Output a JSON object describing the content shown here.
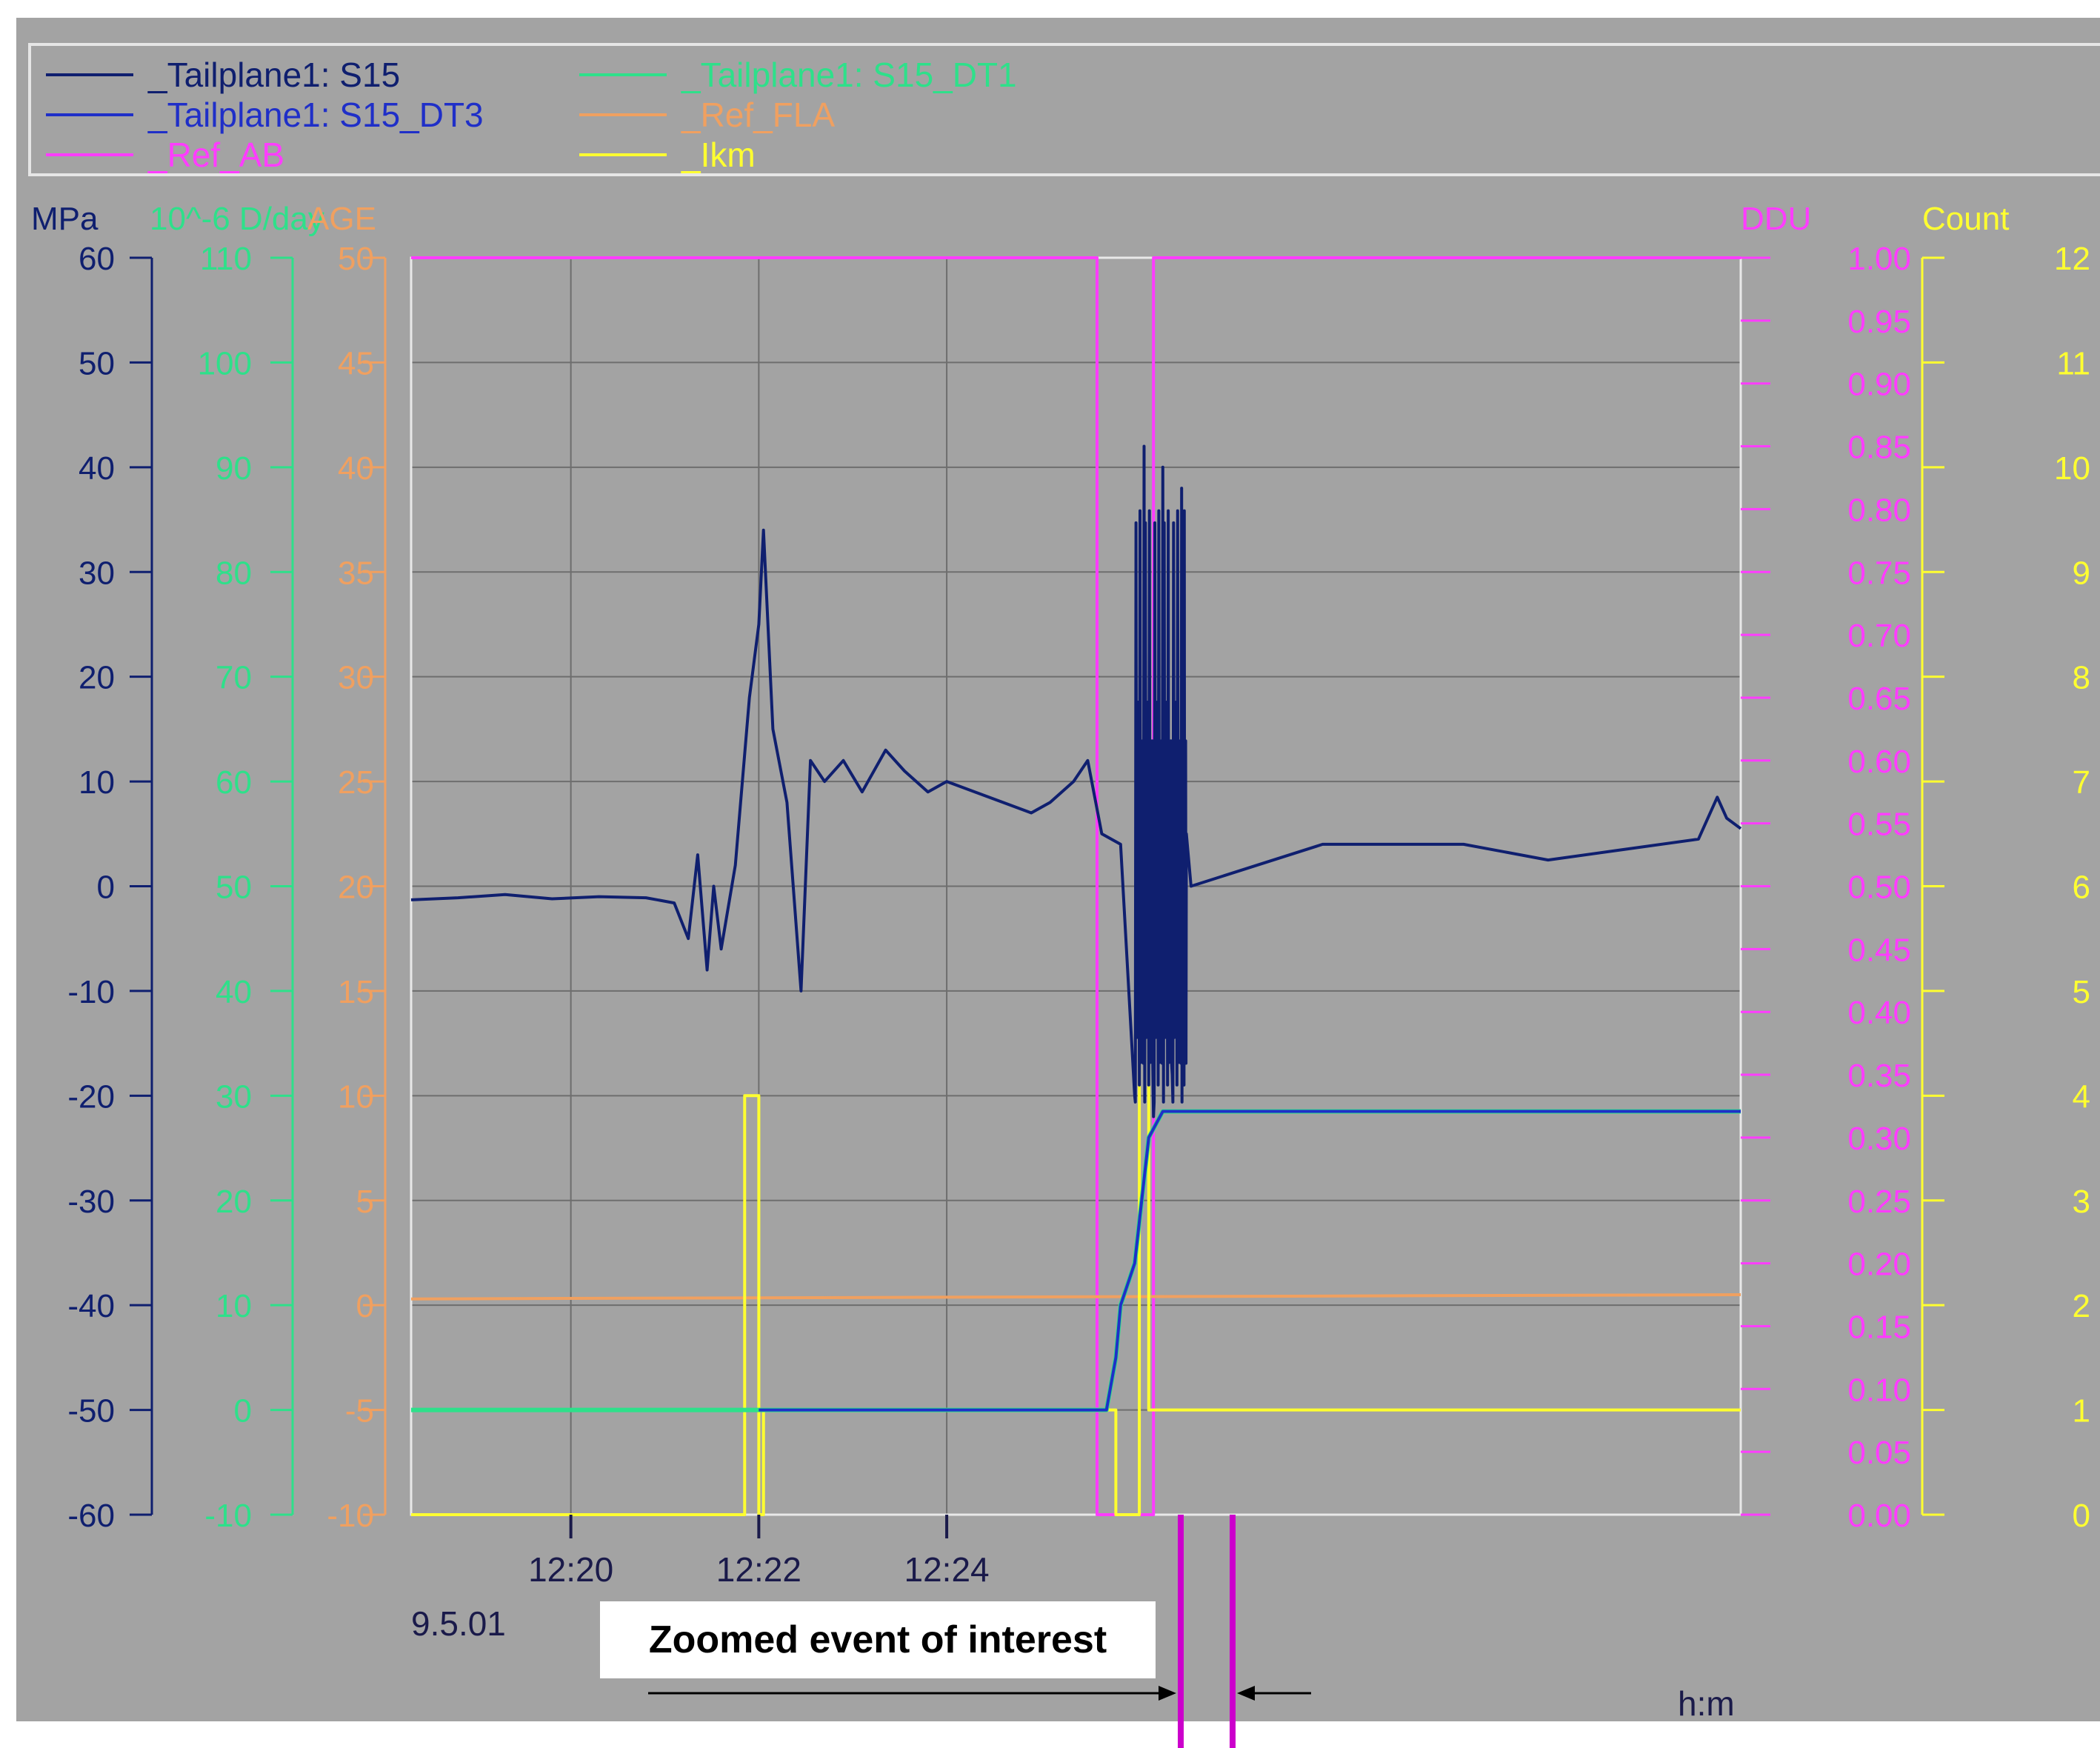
{
  "colors": {
    "background": "#a3a3a3",
    "s15": "#0f1f6f",
    "s15_dt3": "#1f2fc8",
    "s15_dt1": "#2ee08a",
    "ref_ab": "#ff3cff",
    "ref_fla": "#f0a060",
    "ikm": "#ffff30",
    "grid": "#6e6e6e"
  },
  "legend": [
    {
      "label": "_Tailplane1: S15",
      "color": "#0f1f6f"
    },
    {
      "label": "_Tailplane1: S15_DT3",
      "color": "#1f2fc8"
    },
    {
      "label": "_Ref_AB",
      "color": "#ff3cff"
    },
    {
      "label": "_Tailplane1: S15_DT1",
      "color": "#2ee08a"
    },
    {
      "label": "_Ref_FLA",
      "color": "#f0a060"
    },
    {
      "label": "_Ikm",
      "color": "#ffff30"
    }
  ],
  "chart_data": {
    "type": "line",
    "legend_position": "top",
    "grid": true,
    "date_label": "9.5.01",
    "x": {
      "unit_label": "h:m",
      "range_minutes": [
        12.3,
        24.0
      ],
      "tick_labels": [
        "12:20",
        "12:22",
        "12:24"
      ],
      "tick_values": [
        20,
        22,
        24
      ]
    },
    "axes": [
      {
        "label": "MPa",
        "color": "#0f1f6f",
        "range": [
          -60,
          60
        ],
        "ticks": [
          "60",
          "50",
          "40",
          "30",
          "20",
          "10",
          "0",
          "-10",
          "-20",
          "-30",
          "-40",
          "-50",
          "-60"
        ]
      },
      {
        "label": "10^-6 D/day",
        "color": "#2ee08a",
        "range": [
          -10,
          110
        ],
        "ticks": [
          "110",
          "100",
          "90",
          "80",
          "70",
          "60",
          "50",
          "40",
          "30",
          "20",
          "10",
          "0",
          "-10"
        ]
      },
      {
        "label": "AGE",
        "color": "#f0a060",
        "range": [
          -10,
          50
        ],
        "ticks": [
          "50",
          "45",
          "40",
          "35",
          "30",
          "25",
          "20",
          "15",
          "10",
          "5",
          "0",
          "-5",
          "-10"
        ]
      },
      {
        "label": "DDU",
        "color": "#ff3cff",
        "range": [
          0,
          1
        ],
        "ticks": [
          "1.00",
          "0.95",
          "0.90",
          "0.85",
          "0.80",
          "0.75",
          "0.70",
          "0.65",
          "0.60",
          "0.55",
          "0.50",
          "0.45",
          "0.40",
          "0.35",
          "0.30",
          "0.25",
          "0.20",
          "0.15",
          "0.10",
          "0.05",
          "0.00"
        ]
      },
      {
        "label": "Count",
        "color": "#ffff30",
        "range": [
          0,
          12
        ],
        "ticks": [
          "12",
          "11",
          "10",
          "9",
          "8",
          "7",
          "6",
          "5",
          "4",
          "3",
          "2",
          "1",
          "0"
        ]
      }
    ],
    "series": [
      {
        "name": "_Tailplane1: S15",
        "axis": "MPa",
        "points": [
          [
            18.3,
            -1.3
          ],
          [
            18.8,
            -1.1
          ],
          [
            19.3,
            -0.8
          ],
          [
            19.8,
            -1.2
          ],
          [
            20.3,
            -1.0
          ],
          [
            20.8,
            -1.1
          ],
          [
            21.1,
            -1.6
          ],
          [
            21.25,
            -5
          ],
          [
            21.35,
            3
          ],
          [
            21.45,
            -8
          ],
          [
            21.52,
            0
          ],
          [
            21.6,
            -6
          ],
          [
            21.75,
            2
          ],
          [
            21.9,
            18
          ],
          [
            22.0,
            25
          ],
          [
            22.05,
            34
          ],
          [
            22.15,
            15
          ],
          [
            22.3,
            8
          ],
          [
            22.45,
            -10
          ],
          [
            22.55,
            12
          ],
          [
            22.7,
            10
          ],
          [
            22.9,
            12
          ],
          [
            23.1,
            9
          ],
          [
            23.35,
            13
          ],
          [
            23.55,
            11
          ],
          [
            23.8,
            9
          ],
          [
            24.0,
            10
          ],
          [
            24.3,
            9
          ],
          [
            24.6,
            8
          ],
          [
            24.9,
            7
          ],
          [
            25.1,
            8
          ],
          [
            25.35,
            10
          ],
          [
            25.5,
            12
          ],
          [
            25.65,
            5
          ],
          [
            25.85,
            4
          ],
          [
            26.0,
            -20
          ],
          [
            26.1,
            42
          ],
          [
            26.2,
            -22
          ],
          [
            26.3,
            40
          ],
          [
            26.4,
            -18
          ],
          [
            26.5,
            38
          ],
          [
            26.55,
            5
          ],
          [
            26.6,
            0
          ],
          [
            27.3,
            2
          ],
          [
            28.0,
            4
          ],
          [
            28.8,
            4
          ],
          [
            29.5,
            4
          ],
          [
            30.4,
            2.5
          ],
          [
            31.2,
            3.5
          ],
          [
            32.0,
            4.5
          ],
          [
            32.2,
            8.5
          ],
          [
            32.3,
            6.5
          ],
          [
            32.45,
            5.5
          ]
        ]
      },
      {
        "name": "_Tailplane1: S15_DT3",
        "axis": "Count",
        "points": [
          [
            22.0,
            1
          ],
          [
            25.7,
            1
          ],
          [
            25.8,
            1.5
          ],
          [
            25.85,
            2.0
          ],
          [
            26.0,
            2.4
          ],
          [
            26.15,
            3.6
          ],
          [
            26.3,
            3.85
          ],
          [
            32.45,
            3.85
          ]
        ]
      },
      {
        "name": "_Tailplane1: S15_DT1",
        "axis": "Count",
        "points": [
          [
            18.3,
            1
          ],
          [
            22.0,
            1
          ],
          [
            25.7,
            1
          ],
          [
            25.8,
            1.5
          ],
          [
            25.85,
            2.0
          ],
          [
            26.0,
            2.4
          ],
          [
            26.15,
            3.6
          ],
          [
            26.3,
            3.85
          ],
          [
            32.45,
            3.85
          ]
        ]
      },
      {
        "name": "_Ref_FLA",
        "axis": "AGE",
        "points": [
          [
            18.3,
            0.3
          ],
          [
            32.45,
            0.5
          ]
        ]
      },
      {
        "name": "_Ikm",
        "axis": "Count",
        "points": [
          [
            18.3,
            0
          ],
          [
            21.85,
            0
          ],
          [
            21.85,
            4
          ],
          [
            22.0,
            4
          ],
          [
            22.0,
            0
          ],
          [
            22.05,
            0
          ],
          [
            22.05,
            1
          ],
          [
            22.1,
            1
          ],
          [
            25.8,
            1
          ],
          [
            25.8,
            0
          ],
          [
            25.9,
            0
          ],
          [
            26.05,
            0
          ],
          [
            26.05,
            5
          ],
          [
            26.15,
            5
          ],
          [
            26.15,
            1
          ],
          [
            32.45,
            1
          ]
        ]
      },
      {
        "name": "_Ref_AB",
        "axis": "DDU",
        "points": [
          [
            18.3,
            1
          ],
          [
            25.6,
            1
          ],
          [
            25.6,
            0
          ],
          [
            26.2,
            0
          ],
          [
            26.2,
            1
          ],
          [
            32.45,
            1
          ]
        ]
      }
    ]
  },
  "annotation": {
    "text": "Zoomed event of interest"
  }
}
